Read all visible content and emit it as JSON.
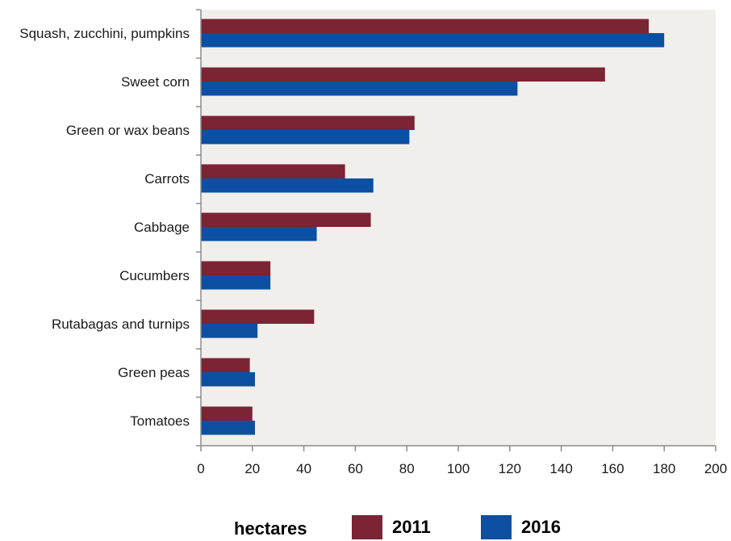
{
  "chart_data": {
    "type": "bar",
    "orientation": "horizontal",
    "categories": [
      "Squash, zucchini, pumpkins",
      "Sweet corn",
      "Green or wax beans",
      "Carrots",
      "Cabbage",
      "Cucumbers",
      "Rutabagas and turnips",
      "Green peas",
      "Tomatoes"
    ],
    "series": [
      {
        "name": "2011",
        "color": "#7b2433",
        "values": [
          174,
          157,
          83,
          56,
          66,
          27,
          44,
          19,
          20
        ]
      },
      {
        "name": "2016",
        "color": "#0d4fa0",
        "values": [
          180,
          123,
          81,
          67,
          45,
          27,
          22,
          21,
          21
        ]
      }
    ],
    "xlim": [
      0,
      200
    ],
    "xticks": [
      "0",
      "20",
      "40",
      "60",
      "80",
      "100",
      "120",
      "140",
      "160",
      "180",
      "200"
    ],
    "xlabel": "hectares",
    "grid": false,
    "legend_position": "bottom",
    "plot_background": "#f1efec"
  }
}
